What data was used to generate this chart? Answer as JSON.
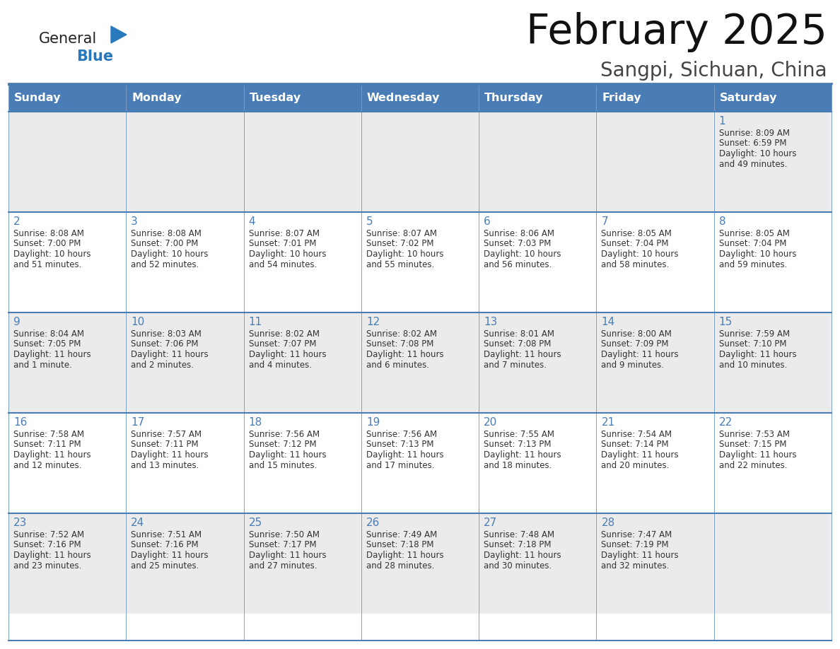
{
  "title": "February 2025",
  "subtitle": "Sangpi, Sichuan, China",
  "days_of_week": [
    "Sunday",
    "Monday",
    "Tuesday",
    "Wednesday",
    "Thursday",
    "Friday",
    "Saturday"
  ],
  "header_bg": "#4a7db5",
  "header_text": "#FFFFFF",
  "row_bg_odd": "#EBEBEB",
  "row_bg_even": "#FFFFFF",
  "border_color": "#4a7db5",
  "day_number_color": "#4a7db5",
  "text_color": "#333333",
  "title_color": "#111111",
  "subtitle_color": "#444444",
  "calendar_data": [
    [
      {
        "day": null,
        "info": ""
      },
      {
        "day": null,
        "info": ""
      },
      {
        "day": null,
        "info": ""
      },
      {
        "day": null,
        "info": ""
      },
      {
        "day": null,
        "info": ""
      },
      {
        "day": null,
        "info": ""
      },
      {
        "day": 1,
        "info": "Sunrise: 8:09 AM\nSunset: 6:59 PM\nDaylight: 10 hours\nand 49 minutes."
      }
    ],
    [
      {
        "day": 2,
        "info": "Sunrise: 8:08 AM\nSunset: 7:00 PM\nDaylight: 10 hours\nand 51 minutes."
      },
      {
        "day": 3,
        "info": "Sunrise: 8:08 AM\nSunset: 7:00 PM\nDaylight: 10 hours\nand 52 minutes."
      },
      {
        "day": 4,
        "info": "Sunrise: 8:07 AM\nSunset: 7:01 PM\nDaylight: 10 hours\nand 54 minutes."
      },
      {
        "day": 5,
        "info": "Sunrise: 8:07 AM\nSunset: 7:02 PM\nDaylight: 10 hours\nand 55 minutes."
      },
      {
        "day": 6,
        "info": "Sunrise: 8:06 AM\nSunset: 7:03 PM\nDaylight: 10 hours\nand 56 minutes."
      },
      {
        "day": 7,
        "info": "Sunrise: 8:05 AM\nSunset: 7:04 PM\nDaylight: 10 hours\nand 58 minutes."
      },
      {
        "day": 8,
        "info": "Sunrise: 8:05 AM\nSunset: 7:04 PM\nDaylight: 10 hours\nand 59 minutes."
      }
    ],
    [
      {
        "day": 9,
        "info": "Sunrise: 8:04 AM\nSunset: 7:05 PM\nDaylight: 11 hours\nand 1 minute."
      },
      {
        "day": 10,
        "info": "Sunrise: 8:03 AM\nSunset: 7:06 PM\nDaylight: 11 hours\nand 2 minutes."
      },
      {
        "day": 11,
        "info": "Sunrise: 8:02 AM\nSunset: 7:07 PM\nDaylight: 11 hours\nand 4 minutes."
      },
      {
        "day": 12,
        "info": "Sunrise: 8:02 AM\nSunset: 7:08 PM\nDaylight: 11 hours\nand 6 minutes."
      },
      {
        "day": 13,
        "info": "Sunrise: 8:01 AM\nSunset: 7:08 PM\nDaylight: 11 hours\nand 7 minutes."
      },
      {
        "day": 14,
        "info": "Sunrise: 8:00 AM\nSunset: 7:09 PM\nDaylight: 11 hours\nand 9 minutes."
      },
      {
        "day": 15,
        "info": "Sunrise: 7:59 AM\nSunset: 7:10 PM\nDaylight: 11 hours\nand 10 minutes."
      }
    ],
    [
      {
        "day": 16,
        "info": "Sunrise: 7:58 AM\nSunset: 7:11 PM\nDaylight: 11 hours\nand 12 minutes."
      },
      {
        "day": 17,
        "info": "Sunrise: 7:57 AM\nSunset: 7:11 PM\nDaylight: 11 hours\nand 13 minutes."
      },
      {
        "day": 18,
        "info": "Sunrise: 7:56 AM\nSunset: 7:12 PM\nDaylight: 11 hours\nand 15 minutes."
      },
      {
        "day": 19,
        "info": "Sunrise: 7:56 AM\nSunset: 7:13 PM\nDaylight: 11 hours\nand 17 minutes."
      },
      {
        "day": 20,
        "info": "Sunrise: 7:55 AM\nSunset: 7:13 PM\nDaylight: 11 hours\nand 18 minutes."
      },
      {
        "day": 21,
        "info": "Sunrise: 7:54 AM\nSunset: 7:14 PM\nDaylight: 11 hours\nand 20 minutes."
      },
      {
        "day": 22,
        "info": "Sunrise: 7:53 AM\nSunset: 7:15 PM\nDaylight: 11 hours\nand 22 minutes."
      }
    ],
    [
      {
        "day": 23,
        "info": "Sunrise: 7:52 AM\nSunset: 7:16 PM\nDaylight: 11 hours\nand 23 minutes."
      },
      {
        "day": 24,
        "info": "Sunrise: 7:51 AM\nSunset: 7:16 PM\nDaylight: 11 hours\nand 25 minutes."
      },
      {
        "day": 25,
        "info": "Sunrise: 7:50 AM\nSunset: 7:17 PM\nDaylight: 11 hours\nand 27 minutes."
      },
      {
        "day": 26,
        "info": "Sunrise: 7:49 AM\nSunset: 7:18 PM\nDaylight: 11 hours\nand 28 minutes."
      },
      {
        "day": 27,
        "info": "Sunrise: 7:48 AM\nSunset: 7:18 PM\nDaylight: 11 hours\nand 30 minutes."
      },
      {
        "day": 28,
        "info": "Sunrise: 7:47 AM\nSunset: 7:19 PM\nDaylight: 11 hours\nand 32 minutes."
      },
      {
        "day": null,
        "info": ""
      }
    ]
  ],
  "logo_general_color": "#222222",
  "logo_blue_color": "#2878BE",
  "logo_triangle_color": "#2878BE"
}
